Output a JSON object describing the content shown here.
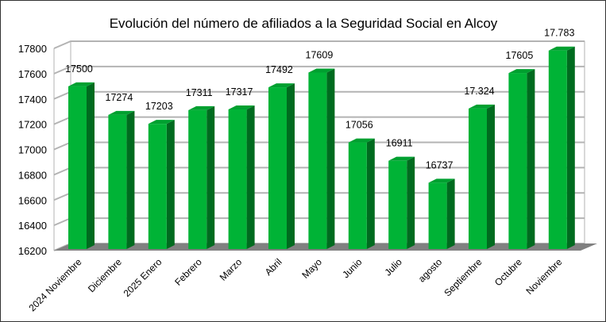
{
  "chart_data": {
    "type": "bar",
    "title": "Evolución del número de afiliados a la Seguridad Social en Alcoy",
    "categories": [
      "2024 Noviembre",
      "Diciembre",
      "2025 Enero",
      "Febrero",
      "Marzo",
      "Abril",
      "Mayo",
      "Junio",
      "Julio",
      "agosto",
      "Septiembre",
      "Octubre",
      "Noviembre"
    ],
    "values": [
      17500,
      17274,
      17203,
      17311,
      17317,
      17492,
      17609,
      17056,
      16911,
      16737,
      17324,
      17605,
      17783
    ],
    "data_labels": [
      "17500",
      "17274",
      "17203",
      "17311",
      "17317",
      "17492",
      "17609",
      "17056",
      "16911",
      "16737",
      "17.324",
      "17605",
      "17.783"
    ],
    "ylim": [
      16200,
      17800
    ],
    "yticks": [
      "16200",
      "16400",
      "16600",
      "16800",
      "17000",
      "17200",
      "17400",
      "17600",
      "17800"
    ],
    "grid": true,
    "style": "3d",
    "colors": {
      "bar_front": "#00b336",
      "bar_side": "#006b1f",
      "bar_top": "#00a030",
      "floor": "#808080",
      "grid": "#b3b3b3"
    }
  }
}
